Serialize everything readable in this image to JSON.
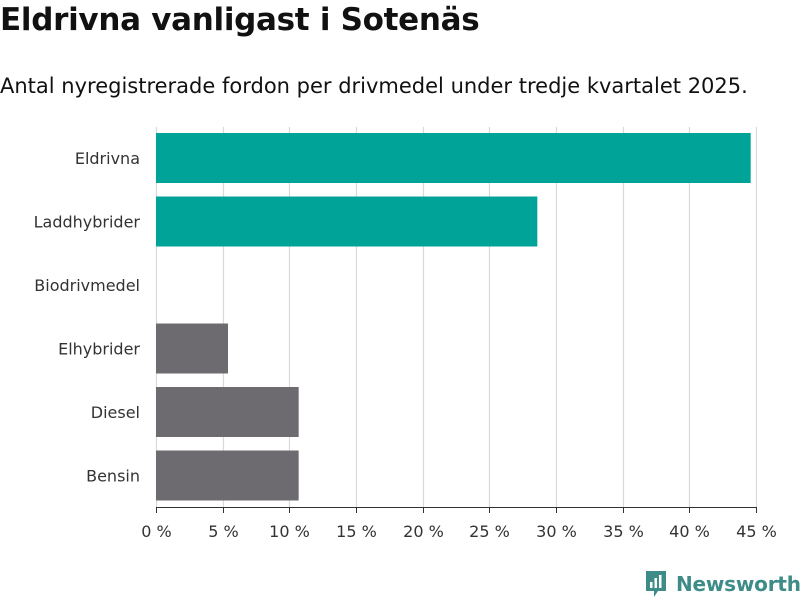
{
  "title": "Eldrivna vanligast i Sotenäs",
  "subtitle": "Antal nyregistrerade fordon per drivmedel under tredje kvartalet 2025.",
  "brand": {
    "name": "Newsworthy",
    "icon": "newsworthy-logo-icon",
    "color": "#3d8c88"
  },
  "colors": {
    "highlight": "#00a398",
    "default": "#6d6b70",
    "grid": "#d9d9d9",
    "axis": "#333333"
  },
  "chart_data": {
    "type": "bar",
    "orientation": "horizontal",
    "title": "Eldrivna vanligast i Sotenäs",
    "subtitle": "Antal nyregistrerade fordon per drivmedel under tredje kvartalet 2025.",
    "xlabel": "",
    "ylabel": "",
    "xlim": [
      0,
      45
    ],
    "tick_step": 5,
    "tick_suffix": " %",
    "grid": true,
    "categories": [
      "Eldrivna",
      "Laddhybrider",
      "Biodrivmedel",
      "Elhybrider",
      "Diesel",
      "Bensin"
    ],
    "values": [
      44.6,
      28.6,
      0,
      5.4,
      10.7,
      10.7
    ],
    "highlighted": [
      true,
      true,
      false,
      false,
      false,
      false
    ]
  }
}
